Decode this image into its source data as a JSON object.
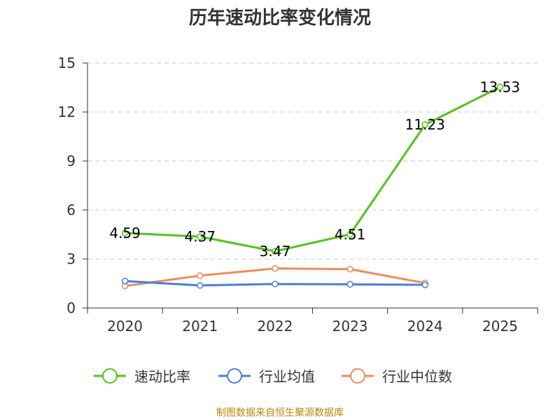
{
  "chart_data": {
    "type": "line",
    "title": "历年速动比率变化情况",
    "categories": [
      "2020",
      "2021",
      "2022",
      "2023",
      "2024",
      "2025"
    ],
    "ylim": [
      0,
      15
    ],
    "yticks": [
      0,
      3,
      6,
      9,
      12,
      15
    ],
    "grid": true,
    "legend_position": "bottom",
    "series": [
      {
        "name": "速动比率",
        "color": "#52c41a",
        "values": [
          4.59,
          4.37,
          3.47,
          4.51,
          11.23,
          13.53
        ],
        "labels": [
          "4.59",
          "4.37",
          "3.47",
          "4.51",
          "11.23",
          "13.53"
        ]
      },
      {
        "name": "行业均值",
        "color": "#4a7ddb",
        "values": [
          1.65,
          1.38,
          1.47,
          1.45,
          1.42,
          null
        ]
      },
      {
        "name": "行业中位数",
        "color": "#f28a5c",
        "values": [
          1.35,
          1.98,
          2.42,
          2.38,
          1.53,
          null
        ]
      }
    ]
  },
  "source_text": "制图数据来自恒生聚源数据库"
}
